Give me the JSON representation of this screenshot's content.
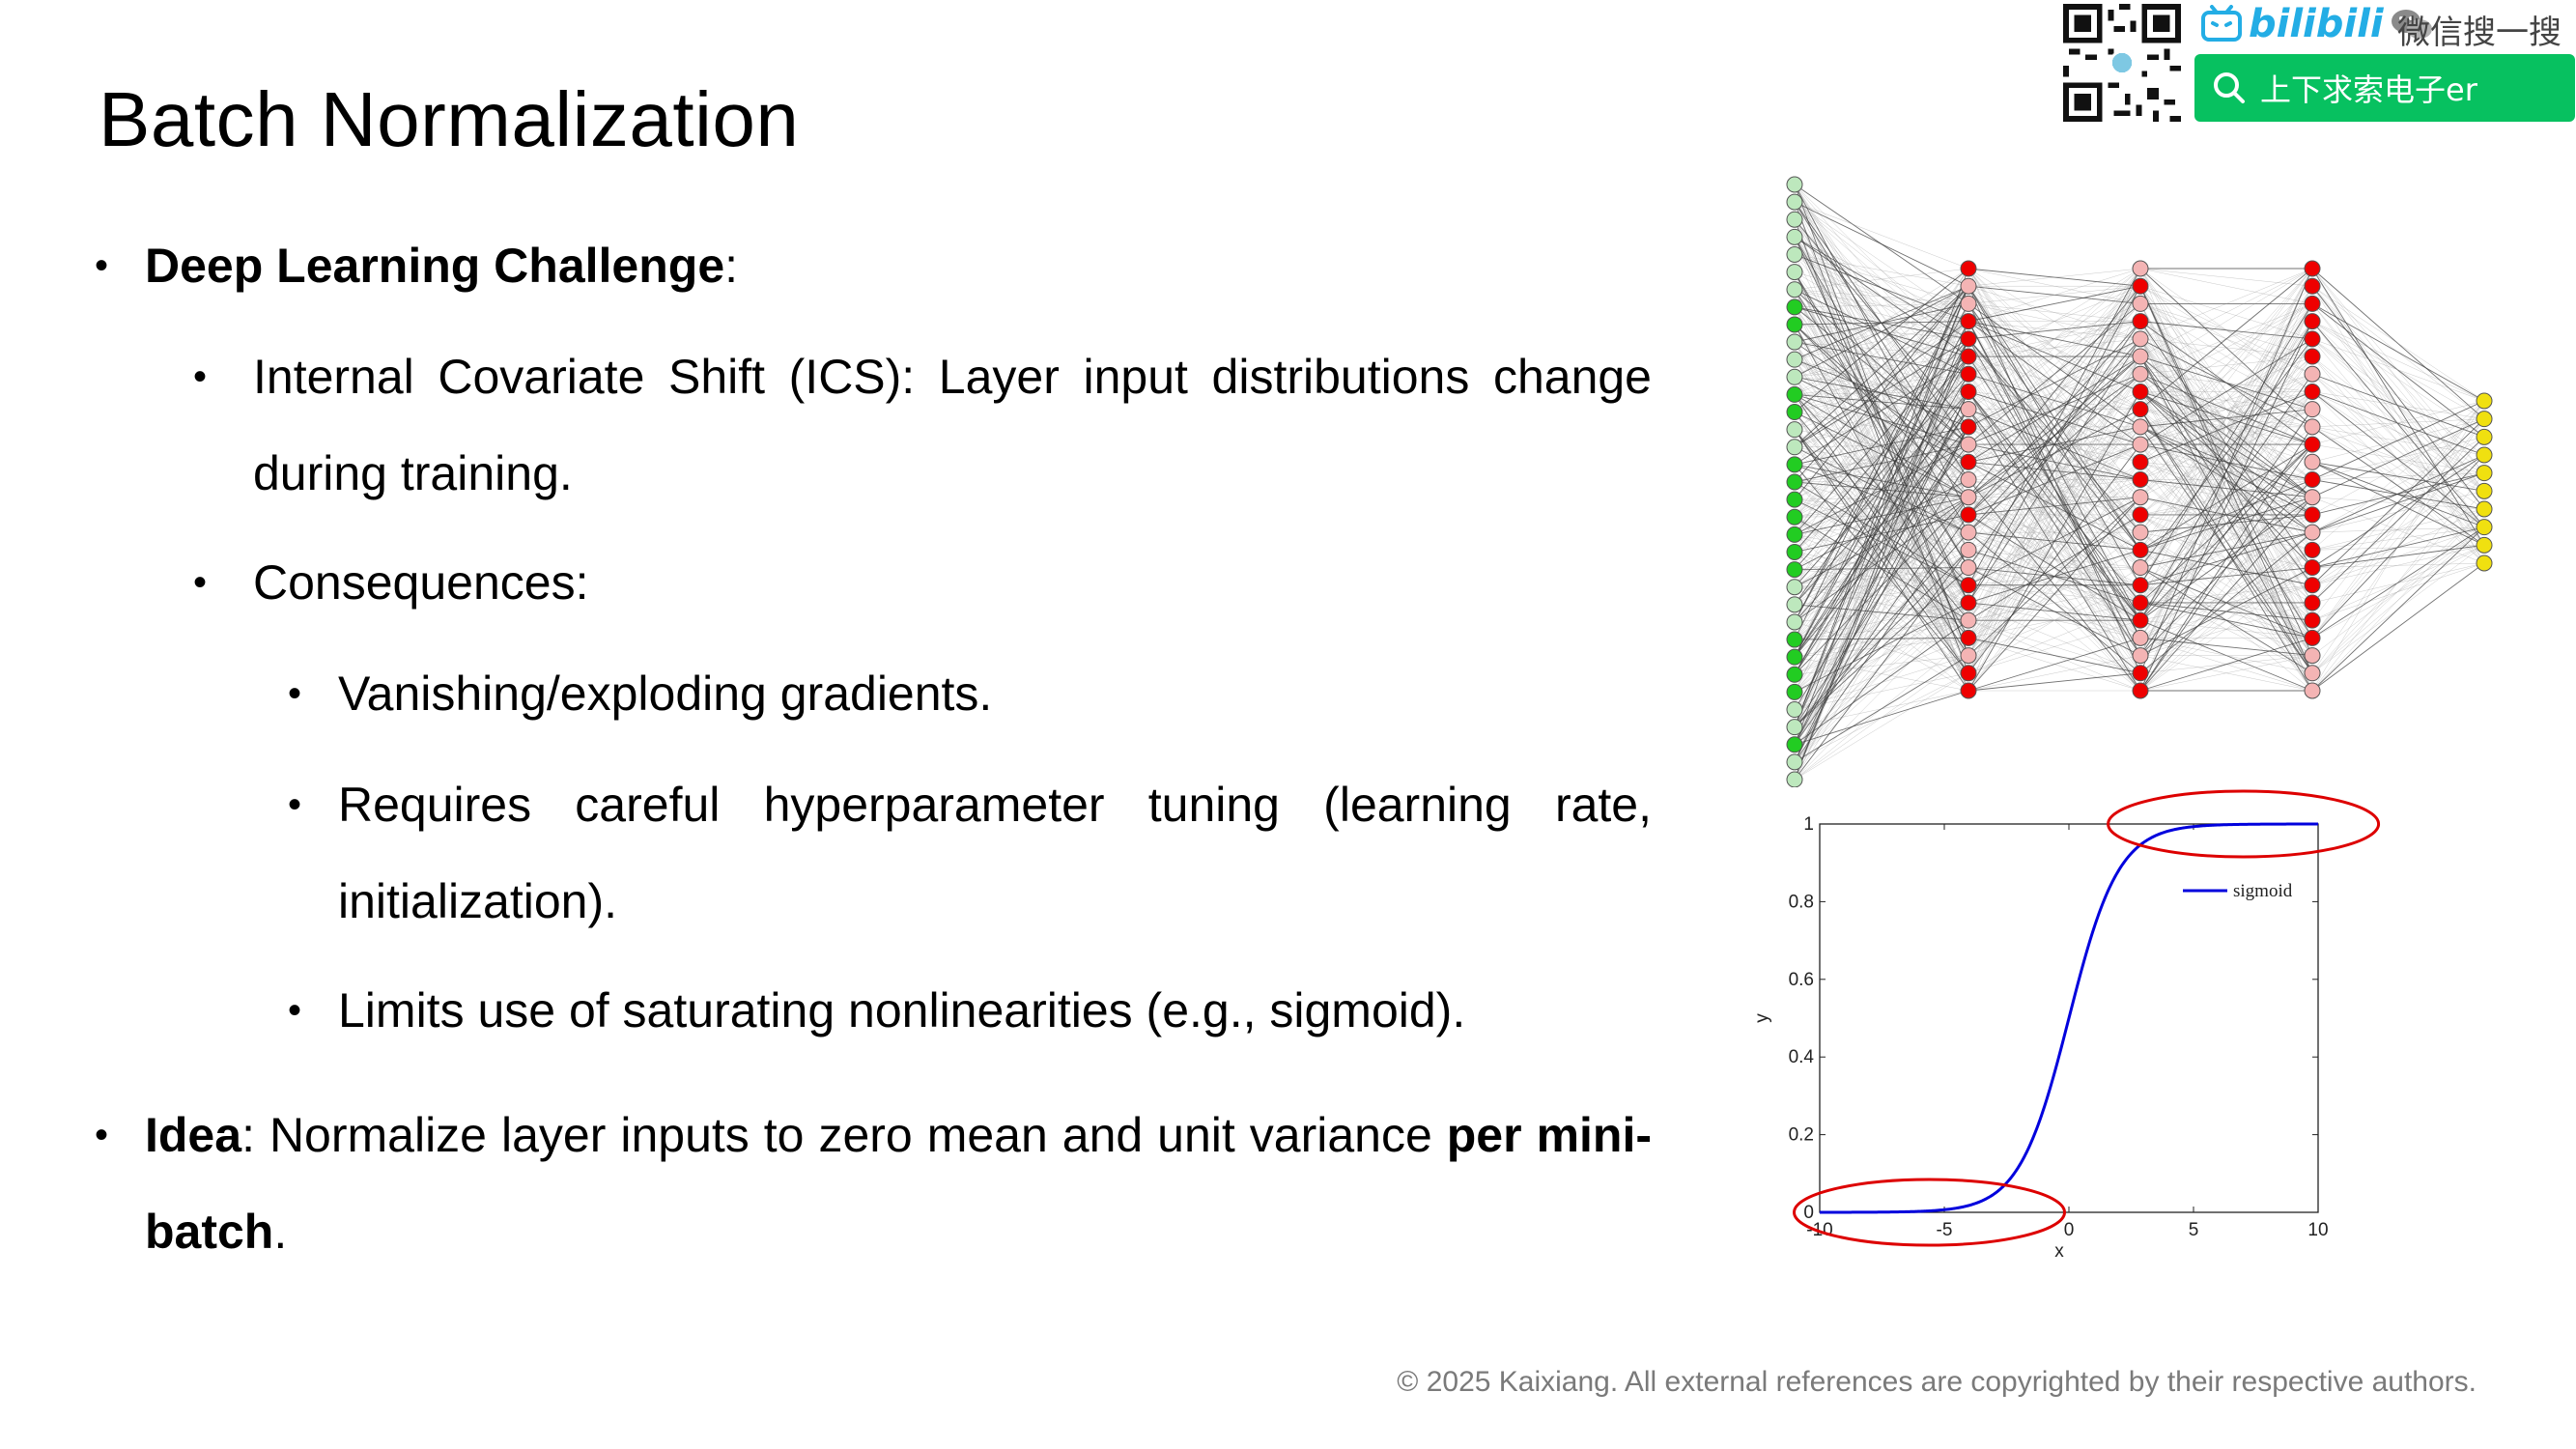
{
  "title": "Batch Normalization",
  "bullets": {
    "challenge_label": "Deep Learning Challenge",
    "challenge_colon": ":",
    "ics": "Internal Covariate Shift (ICS): Layer input distributions change during training.",
    "consequences": "Consequences:",
    "vanishing": "Vanishing/exploding gradients.",
    "tuning": "Requires careful hyperparameter tuning (learning rate, initialization).",
    "limits": "Limits use of saturating nonlinearities (e.g., sigmoid).",
    "idea_label": "Idea",
    "idea_text": ": Normalize layer inputs to zero mean and unit variance ",
    "idea_bold": "per mini-batch",
    "idea_end": "."
  },
  "brand": {
    "bilibili": "bilibili",
    "wechat": "微信搜一搜",
    "search_text": "上下求索电子er"
  },
  "sigmoid_plot": {
    "legend": "sigmoid",
    "xlabel": "x",
    "ylabel": "y",
    "xticks": [
      "-10",
      "-5",
      "0",
      "5",
      "10"
    ],
    "yticks": [
      "0",
      "0.2",
      "0.4",
      "0.6",
      "0.8",
      "1"
    ],
    "xlim": [
      -10,
      10
    ],
    "ylim": [
      0,
      1
    ],
    "curve_color": "#0000dd",
    "highlight_color": "#dd0000"
  },
  "network": {
    "layer_sizes": [
      35,
      25,
      25,
      25,
      10
    ],
    "colors": {
      "input_dark": "#22cc22",
      "input_light": "#bde8bd",
      "hidden_dark": "#ee0000",
      "hidden_light": "#f4b4b4",
      "output": "#f0e010"
    }
  },
  "footer": "© 2025 Kaixiang. All external references are copyrighted by their respective authors."
}
